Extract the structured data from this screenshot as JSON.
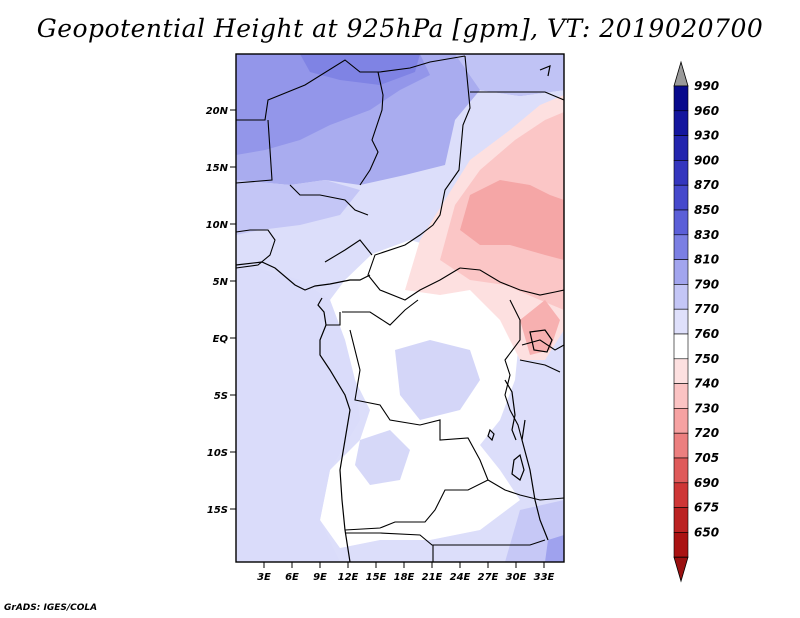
{
  "title": "Geopotential Height at 925hPa [gpm], VT: 2019020700",
  "footer": "GrADS: IGES/COLA",
  "lat_ticks": [
    "20N",
    "15N",
    "10N",
    "5N",
    "EQ",
    "5S",
    "10S",
    "15S"
  ],
  "lon_ticks": [
    "3E",
    "6E",
    "9E",
    "12E",
    "15E",
    "18E",
    "21E",
    "24E",
    "27E",
    "30E",
    "33E"
  ],
  "colorbar": {
    "labels": [
      "990",
      "960",
      "930",
      "900",
      "870",
      "850",
      "830",
      "810",
      "790",
      "770",
      "760",
      "750",
      "740",
      "730",
      "720",
      "705",
      "690",
      "675",
      "650"
    ],
    "colors": [
      "#080a8c",
      "#14169e",
      "#2325ae",
      "#3436be",
      "#4649cc",
      "#5b5fd8",
      "#7b7fe3",
      "#a2a5ee",
      "#c4c6f6",
      "#dfe0fb",
      "#ffffff",
      "#fde0e0",
      "#fbc3c3",
      "#f6a2a2",
      "#ec7f7f",
      "#df5a5a",
      "#ce3636",
      "#bb2222",
      "#aa1212"
    ],
    "top_arrow_color": "#9a9a9a",
    "bottom_arrow_color": "#9a1010"
  }
}
